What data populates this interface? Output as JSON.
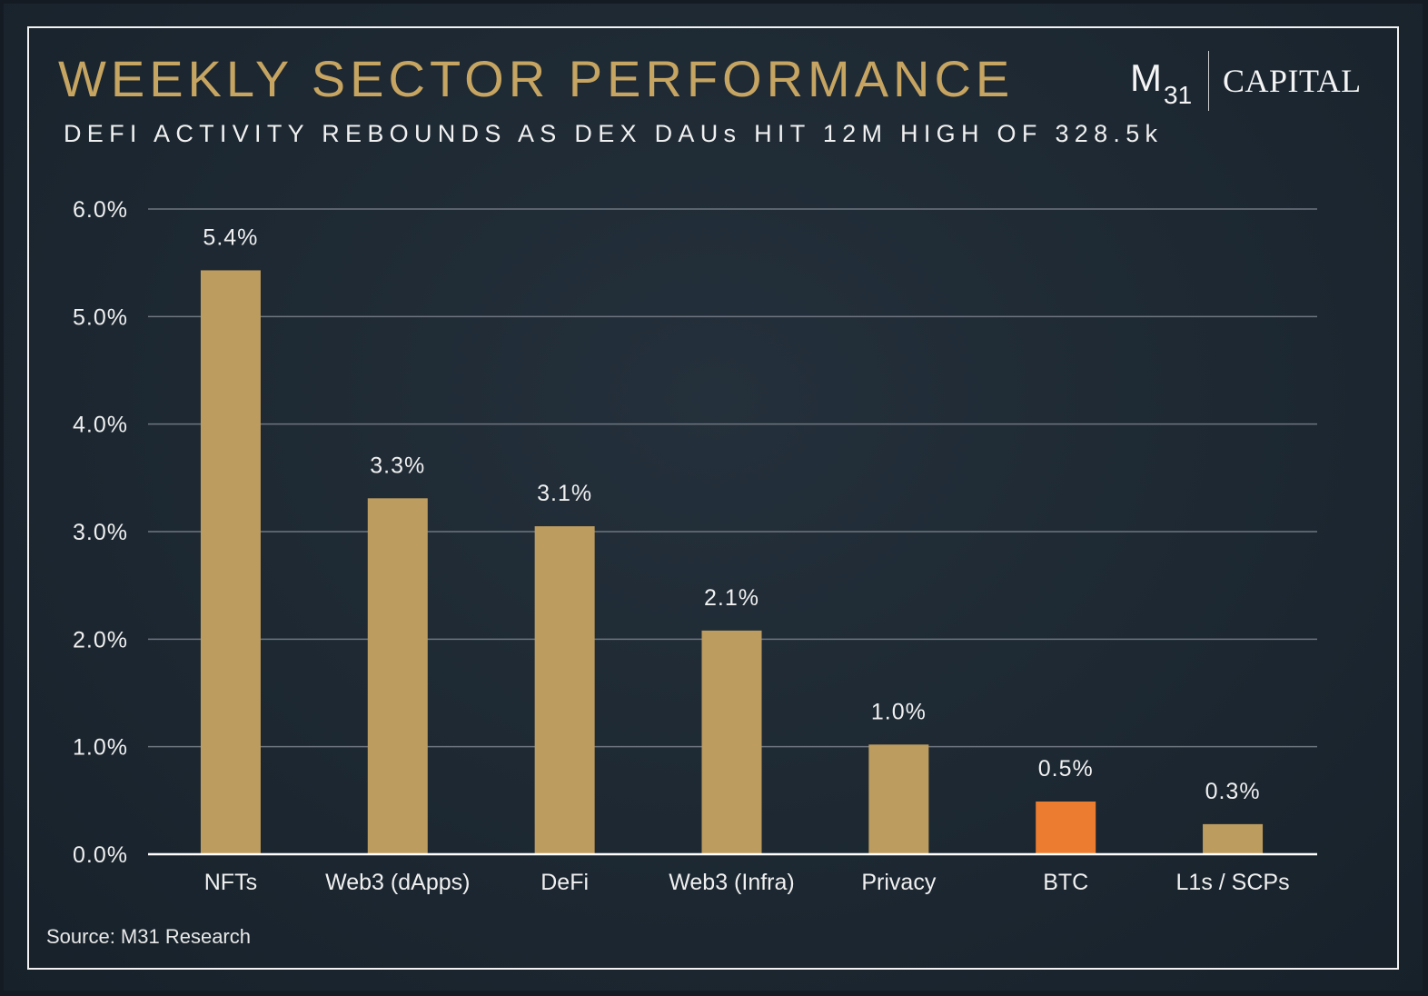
{
  "title": "WEEKLY SECTOR PERFORMANCE",
  "subtitle": "DEFI ACTIVITY REBOUNDS AS DEX DAUs HIT 12M HIGH OF 328.5k",
  "logo": {
    "m31_main": "M",
    "m31_sub": "31",
    "capital": "CAPITAL"
  },
  "source": "Source: M31 Research",
  "colors": {
    "bar": "#bd9c5f",
    "highlight": "#ec7d30",
    "title": "#c6a461",
    "grid": "#6e7680",
    "text": "#f0f0f0"
  },
  "chart_data": {
    "type": "bar",
    "title": "WEEKLY SECTOR PERFORMANCE",
    "subtitle": "DEFI ACTIVITY REBOUNDS AS DEX DAUs HIT 12M HIGH OF 328.5k",
    "xlabel": "",
    "ylabel": "",
    "categories": [
      "NFTs",
      "Web3 (dApps)",
      "DeFi",
      "Web3 (Infra)",
      "Privacy",
      "BTC",
      "L1s / SCPs"
    ],
    "values": [
      5.43,
      3.31,
      3.05,
      2.08,
      1.02,
      0.49,
      0.28
    ],
    "data_labels": [
      "5.4%",
      "3.3%",
      "3.1%",
      "2.1%",
      "1.0%",
      "0.5%",
      "0.3%"
    ],
    "highlight_category": "BTC",
    "ylim": [
      0,
      6
    ],
    "yticks": [
      0,
      1,
      2,
      3,
      4,
      5,
      6
    ],
    "ytick_labels": [
      "0.0%",
      "1.0%",
      "2.0%",
      "3.0%",
      "4.0%",
      "5.0%",
      "6.0%"
    ],
    "grid": true,
    "legend": "none"
  }
}
